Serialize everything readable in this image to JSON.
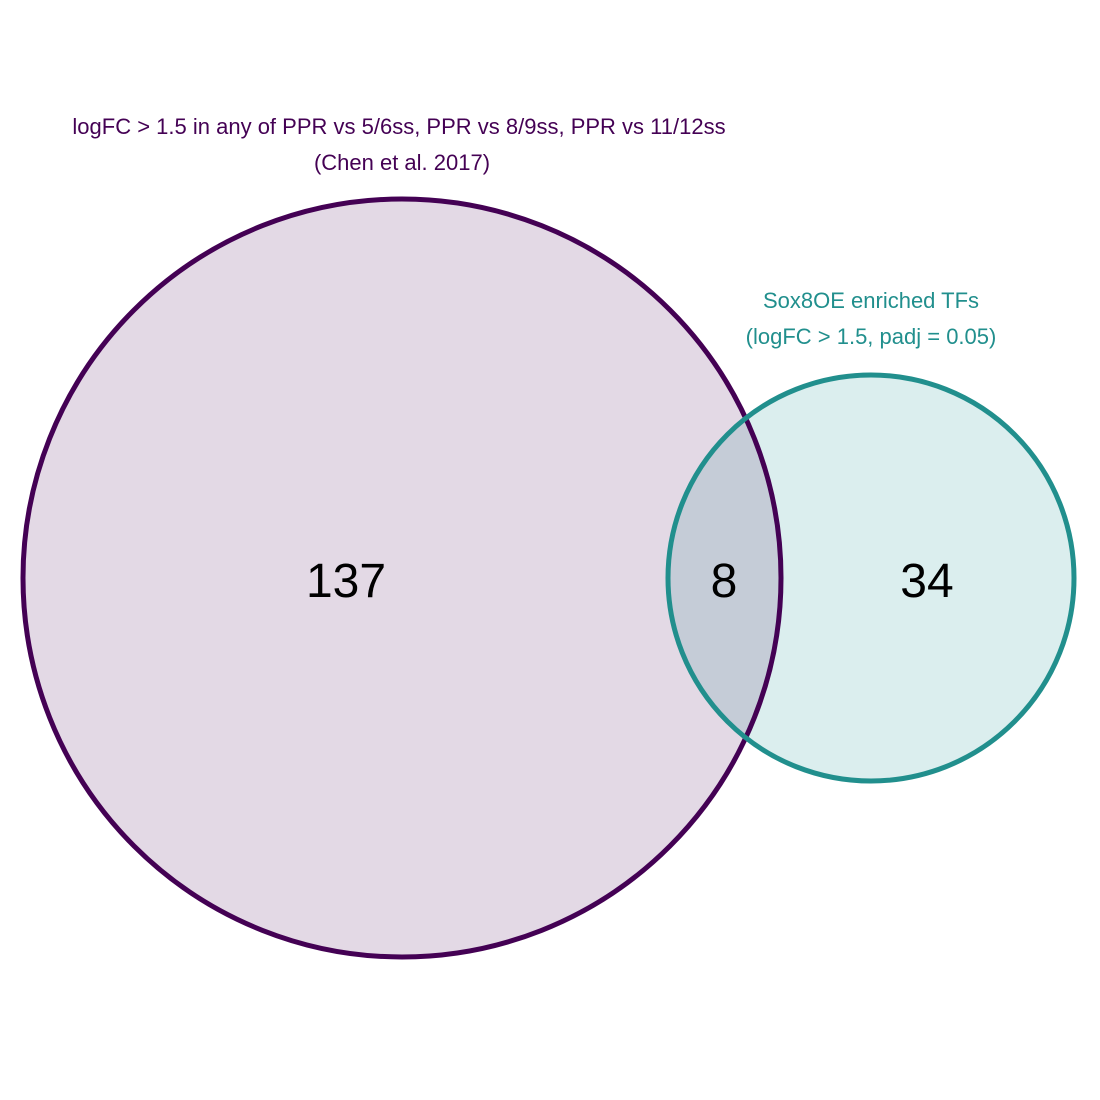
{
  "venn": {
    "sets": [
      {
        "label_lines": [
          "logFC > 1.5 in any of PPR vs 5/6ss, PPR vs 8/9ss, PPR vs 11/12ss",
          "(Chen et al. 2017)"
        ],
        "only_count": "137",
        "color": "#440154",
        "fill": "#e3d9e5"
      },
      {
        "label_lines": [
          "Sox8OE enriched TFs",
          "(logFC > 1.5, padj = 0.05)"
        ],
        "only_count": "34",
        "color": "#218f8d",
        "fill": "#dbeeee"
      }
    ],
    "intersection_count": "8",
    "intersection_fill": "#c5ccd7"
  }
}
